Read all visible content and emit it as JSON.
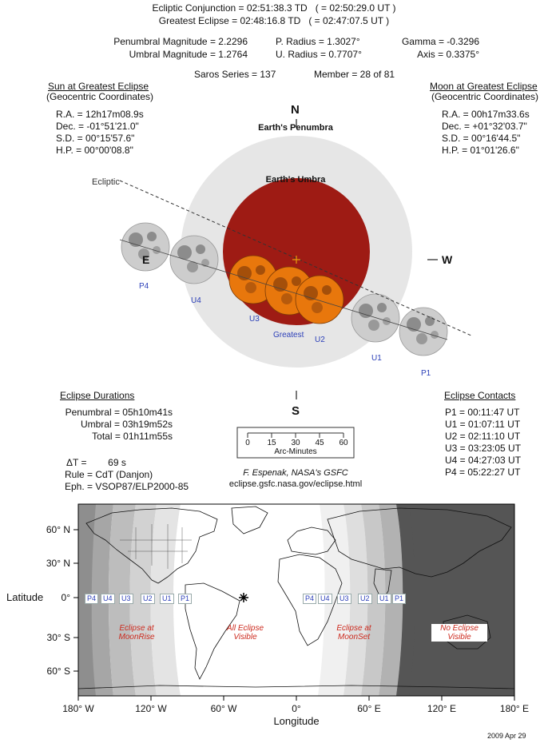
{
  "header": {
    "ecliptic_conjunction": "Ecliptic Conjunction = 02:51:38.3 TD   ( = 02:50:29.0 UT )",
    "greatest_eclipse": "Greatest Eclipse = 02:48:16.8 TD   ( = 02:47:07.5 UT )",
    "penumbral_magnitude": "Penumbral Magnitude = 2.2296",
    "umbral_magnitude": "Umbral Magnitude = 1.2764",
    "p_radius": "P. Radius = 1.3027°",
    "u_radius": "U. Radius = 0.7707°",
    "gamma": "Gamma = -0.3296",
    "axis": "Axis = 0.3375°",
    "saros": "Saros Series = 137",
    "member": "Member = 28 of 81"
  },
  "sun": {
    "title": "Sun at Greatest Eclipse",
    "subtitle": "(Geocentric Coordinates)",
    "ra": "R.A. = 12h17m08.9s",
    "dec": "Dec. = -01°51'21.0\"",
    "sd": "S.D. = 00°15'57.6\"",
    "hp": "H.P. = 00°00'08.8\""
  },
  "moon": {
    "title": "Moon at Greatest Eclipse",
    "subtitle": "(Geocentric Coordinates)",
    "ra": "R.A. = 00h17m33.6s",
    "dec": "Dec. = +01°32'03.7\"",
    "sd": "S.D. = 00°16'44.5\"",
    "hp": "H.P. = 01°01'26.6\""
  },
  "diagram": {
    "north": "N",
    "south": "S",
    "east": "E",
    "west": "W",
    "penumbra_label": "Earth's Penumbra",
    "umbra_label": "Earth's Umbra",
    "ecliptic_label": "Ecliptic",
    "contacts": [
      "P4",
      "U4",
      "U3",
      "Greatest",
      "U2",
      "U1",
      "P1"
    ],
    "colors": {
      "penumbra": "#e6e6e6",
      "umbra": "#9e1b14",
      "moon_eclipsed": "#e8770c",
      "moon_grey": "#cfcfcf"
    }
  },
  "durations": {
    "title": "Eclipse Durations",
    "penumbral": "Penumbral = 05h10m41s",
    "umbral": "Umbral = 03h19m52s",
    "total": "Total = 01h11m55s"
  },
  "scale": {
    "ticks": [
      "0",
      "15",
      "30",
      "45",
      "60"
    ],
    "label": "Arc-Minutes"
  },
  "credit": {
    "author": "F. Espenak, NASA's GSFC",
    "url": "eclipse.gsfc.nasa.gov/eclipse.html"
  },
  "misc": {
    "delta_t": "ΔT =        69 s",
    "rule": "Rule = CdT (Danjon)",
    "eph": "Eph. = VSOP87/ELP2000-85"
  },
  "contacts_list": {
    "title": "Eclipse Contacts",
    "p1": "P1 = 00:11:47 UT",
    "u1": "U1 = 01:07:11 UT",
    "u2": "U2 = 02:11:10 UT",
    "u3": "U3 = 03:23:05 UT",
    "u4": "U4 = 04:27:03 UT",
    "p4": "P4 = 05:22:27 UT"
  },
  "map": {
    "ylabel": "Latitude",
    "xlabel": "Longitude",
    "yticks": [
      "60° N",
      "30° N",
      "0°",
      "30° S",
      "60° S"
    ],
    "xticks": [
      "180° W",
      "120° W",
      "60° W",
      "0°",
      "60° E",
      "120° E",
      "180° E"
    ],
    "left_labels": [
      "P4",
      "U4",
      "U3",
      "U2",
      "U1",
      "P1"
    ],
    "right_labels": [
      "P4",
      "U4",
      "U3",
      "U2",
      "U1",
      "P1"
    ],
    "regions": {
      "moonrise": "Eclipse at\nMoonRise",
      "visible": "All Eclipse\nVisible",
      "moonset": "Eclipse at\nMoonSet",
      "none": "No Eclipse\nVisible"
    }
  },
  "date": "2009 Apr 29"
}
